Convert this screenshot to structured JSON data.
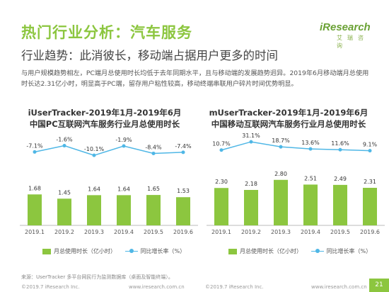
{
  "header": {
    "title": "热门行业分析：汽车服务",
    "subtitle": "行业趋势：此消彼长，移动端占据用户更多的时间",
    "description": "与用户规模趋势相左，PC端月总使用时长均低于去年同期水平，且与移动端的发展趋势迥异。2019年6月移动端月总使用时长达2.31亿小时，明显高于PC端，留存用户粘性较高，移动终端串联用户碎片时间优势明显。"
  },
  "logo": {
    "word": "iResearch",
    "sub": "艾瑞咨询"
  },
  "colors": {
    "bar": "#8cc63f",
    "line": "#4fb7e6",
    "accent": "#8cc63f"
  },
  "chart_data": [
    {
      "type": "bar",
      "title_line1": "iUserTracker-2019年1月-2019年6月",
      "title_line2": "中国PC互联网汽车服务行业月总使用时长",
      "categories": [
        "2019.1",
        "2019.2",
        "2019.3",
        "2019.4",
        "2019.5",
        "2019.6"
      ],
      "series": [
        {
          "name": "月总使用时长（亿小时）",
          "type": "bar",
          "values": [
            1.68,
            1.45,
            1.64,
            1.64,
            1.65,
            1.53
          ],
          "labels": [
            "1.68",
            "1.45",
            "1.64",
            "1.64",
            "1.65",
            "1.53"
          ]
        },
        {
          "name": "同比增长率（%）",
          "type": "line",
          "values": [
            -7.1,
            -1.6,
            -10.1,
            -1.9,
            -8.4,
            -7.4
          ],
          "labels": [
            "-7.1%",
            "-1.6%",
            "-10.1%",
            "-1.9%",
            "-8.4%",
            "-7.4%"
          ]
        }
      ],
      "bar_ylim": [
        0,
        3.0
      ],
      "line_ylim": [
        -20,
        5
      ],
      "legend": "bottom"
    },
    {
      "type": "bar",
      "title_line1": "mUserTracker-2019年1月-2019年6月",
      "title_line2": "中国移动互联网汽车服务行业月总使用时长",
      "categories": [
        "2019.1",
        "2019.2",
        "2019.3",
        "2019.4",
        "2019.5",
        "2019.6"
      ],
      "series": [
        {
          "name": "月总使用时长（亿小时）",
          "type": "bar",
          "values": [
            2.3,
            2.18,
            2.8,
            2.51,
            2.49,
            2.31
          ],
          "labels": [
            "2.30",
            "2.18",
            "2.80",
            "2.51",
            "2.49",
            "2.31"
          ]
        },
        {
          "name": "同比增长率（%）",
          "type": "line",
          "values": [
            10.7,
            31.1,
            18.7,
            13.6,
            11.6,
            9.1
          ],
          "labels": [
            "10.7%",
            "31.1%",
            "18.7%",
            "13.6%",
            "11.6%",
            "9.1%"
          ]
        }
      ],
      "bar_ylim": [
        0,
        3.4
      ],
      "line_ylim": [
        -30,
        40
      ],
      "legend": "bottom"
    }
  ],
  "footer": {
    "source": "来源：UserTracker 多平台网民行为监测数据库（桌面及智能终端）。",
    "copyright_left": "©2019.7 iResearch Inc.",
    "url_left": "www.iresearch.com.cn",
    "copyright_right": "©2019.7 iResearch Inc.",
    "url_right": "www.iresearch.com.cn",
    "page": "21"
  }
}
